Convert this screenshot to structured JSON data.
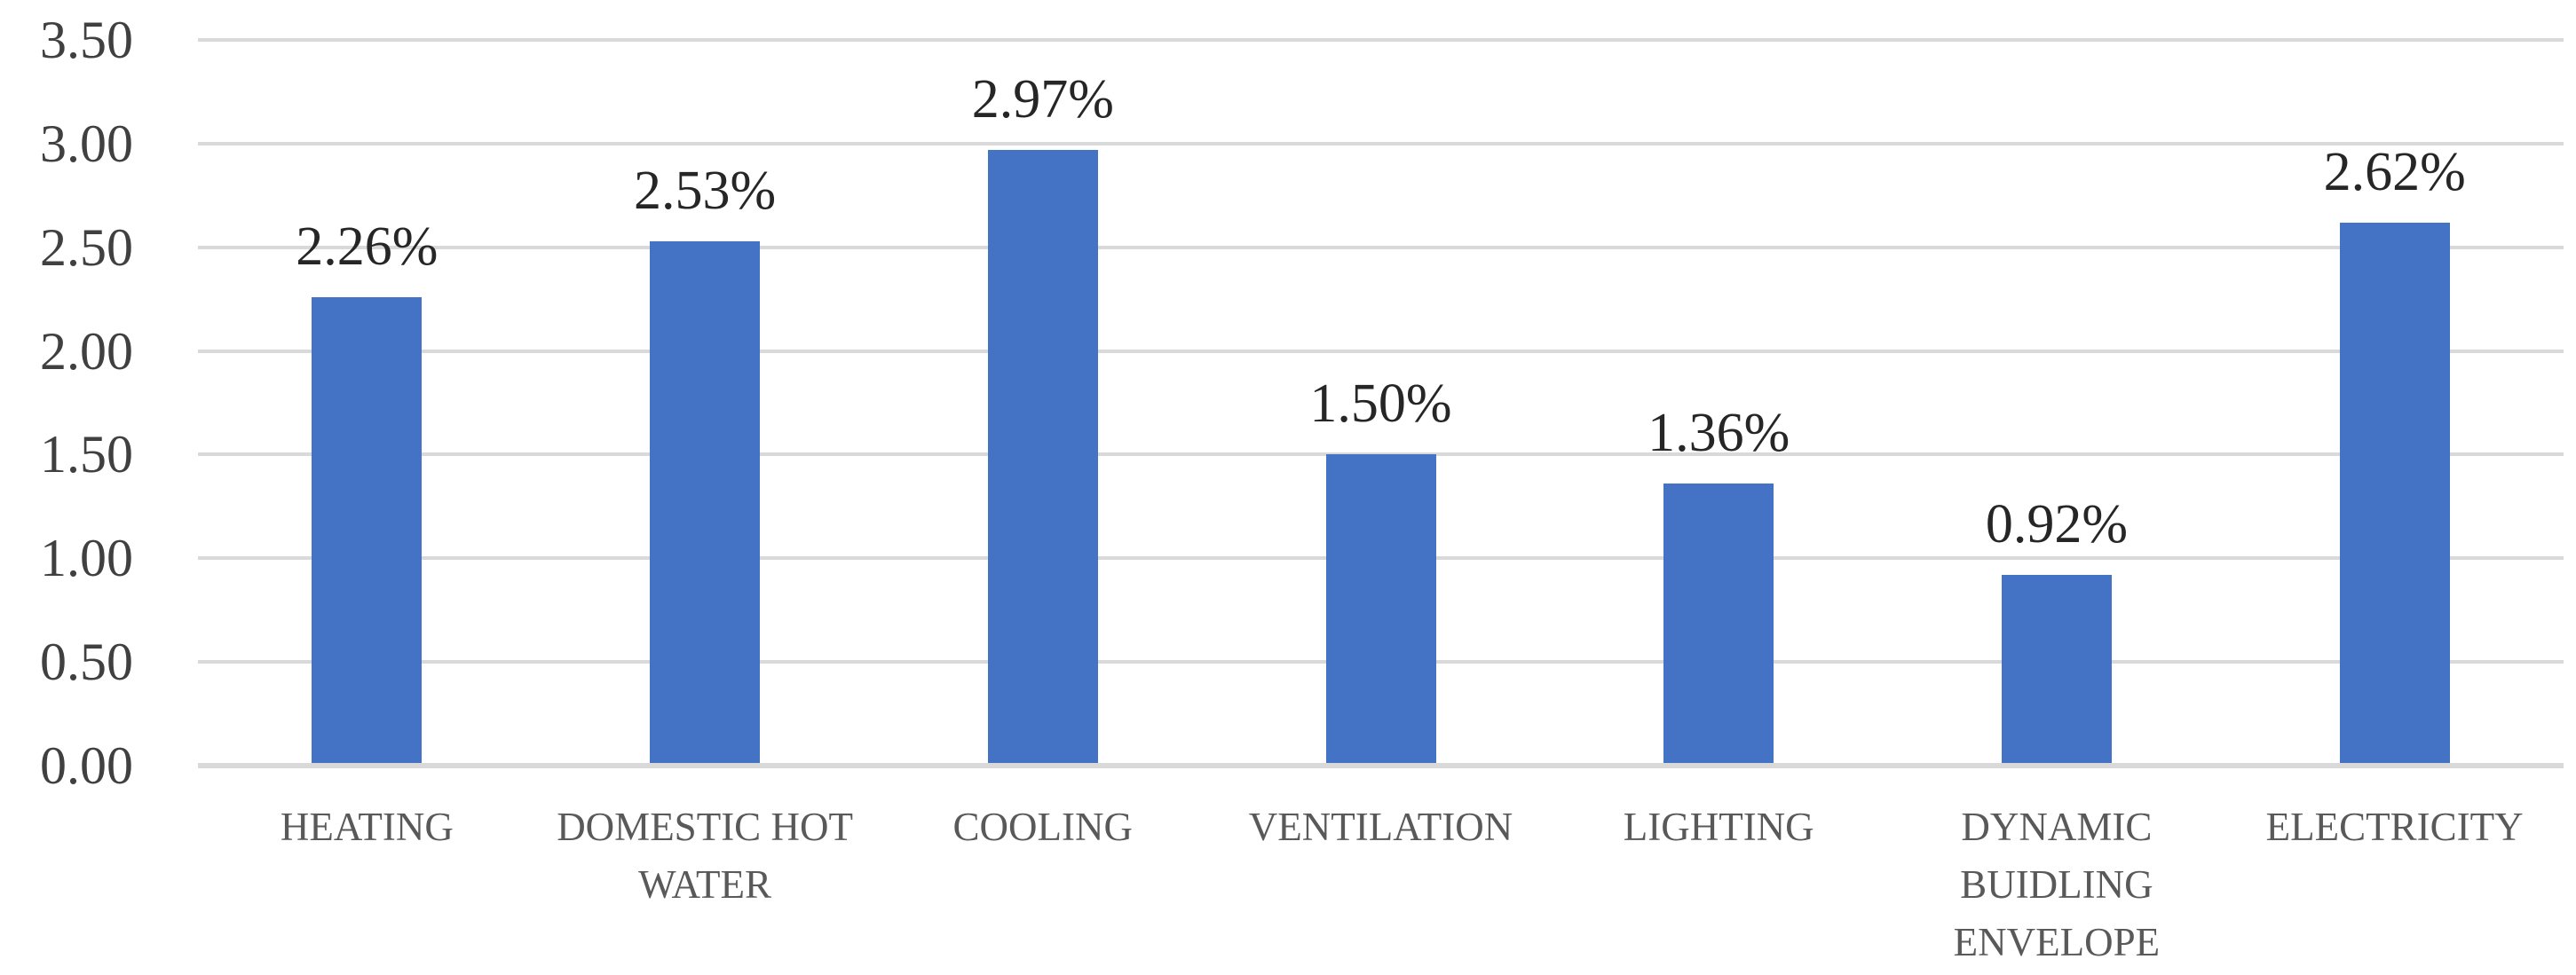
{
  "chart_data": {
    "type": "bar",
    "title": "",
    "xlabel": "",
    "ylabel": "",
    "categories": [
      "HEATING",
      "DOMESTIC HOT WATER",
      "COOLING",
      "VENTILATION",
      "LIGHTING",
      "DYNAMIC BUIDLING ENVELOPE",
      "ELECTRICITY"
    ],
    "category_lines": [
      [
        "HEATING"
      ],
      [
        "DOMESTIC HOT",
        "WATER"
      ],
      [
        "COOLING"
      ],
      [
        "VENTILATION"
      ],
      [
        "LIGHTING"
      ],
      [
        "DYNAMIC",
        "BUIDLING",
        "ENVELOPE"
      ],
      [
        "ELECTRICITY"
      ]
    ],
    "values": [
      2.26,
      2.53,
      2.97,
      1.5,
      1.36,
      0.92,
      2.62
    ],
    "data_labels": [
      "2.26%",
      "2.53%",
      "2.97%",
      "1.50%",
      "1.36%",
      "0.92%",
      "2.62%"
    ],
    "ylim": [
      0,
      3.5
    ],
    "ytick_step": 0.5,
    "yticks": [
      "3.50",
      "3.00",
      "2.50",
      "2.00",
      "1.50",
      "1.00",
      "0.50",
      "0.00"
    ],
    "grid": true,
    "legend": "none",
    "bar_color": "#4472C4",
    "gridline_color": "#d9d9d9",
    "ytick_color": "#404040",
    "category_label_color": "#595959",
    "data_label_color": "#262626"
  }
}
